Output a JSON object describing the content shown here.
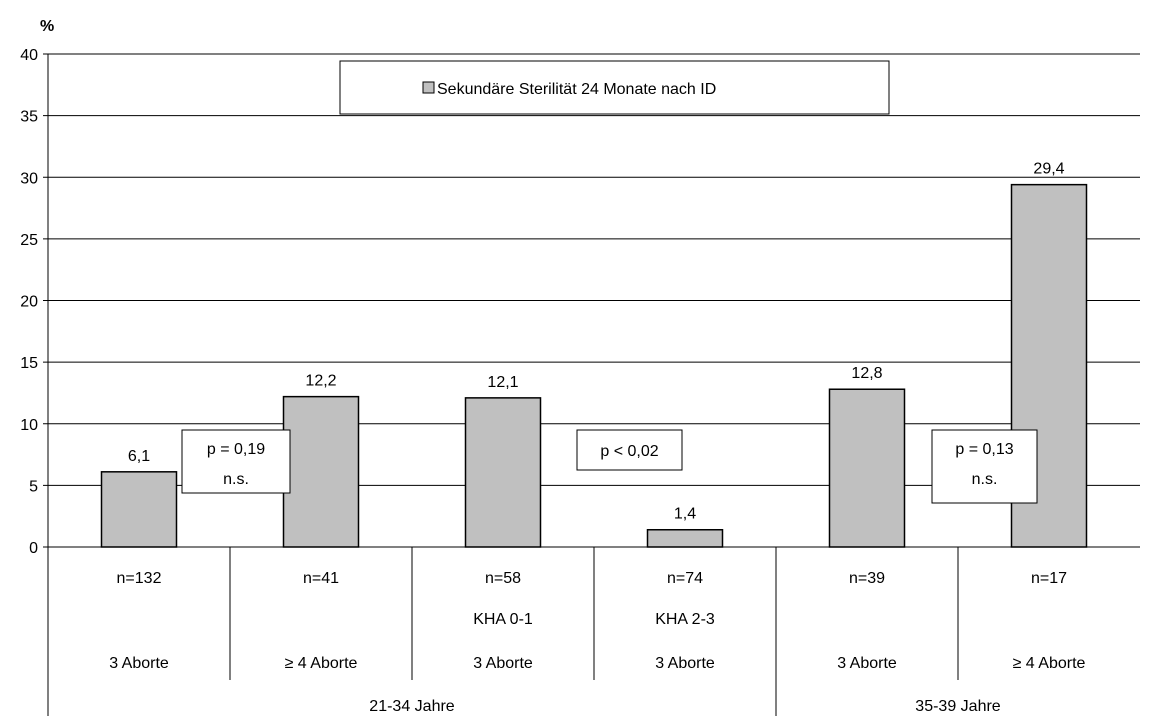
{
  "chart_data": {
    "type": "bar",
    "unit_label": "%",
    "ylim": [
      0,
      40
    ],
    "yticks": [
      "0",
      "5",
      "10",
      "15",
      "20",
      "25",
      "30",
      "35",
      "40"
    ],
    "grid": true,
    "legend": {
      "position": "top-center",
      "entries": [
        "Sekundäre Sterilität 24 Monate nach ID"
      ]
    },
    "bar_color": "#c0c0c0",
    "categories": [
      {
        "n": "n=132",
        "sub": "",
        "abort": "3 Aborte"
      },
      {
        "n": "n=41",
        "sub": "",
        "abort": "≥ 4 Aborte"
      },
      {
        "n": "n=58",
        "sub": "KHA 0-1",
        "abort": "3 Aborte"
      },
      {
        "n": "n=74",
        "sub": "KHA 2-3",
        "abort": "3 Aborte"
      },
      {
        "n": "n=39",
        "sub": "",
        "abort": "3 Aborte"
      },
      {
        "n": "n=17",
        "sub": "",
        "abort": "≥ 4 Aborte"
      }
    ],
    "values": [
      6.1,
      12.2,
      12.1,
      1.4,
      12.8,
      29.4
    ],
    "value_labels": [
      "6,1",
      "12,2",
      "12,1",
      "1,4",
      "12,8",
      "29,4"
    ],
    "age_groups": [
      {
        "label": "21-34 Jahre",
        "from": 0,
        "to": 3
      },
      {
        "label": "35-39 Jahre",
        "from": 4,
        "to": 5
      }
    ],
    "annotations": [
      {
        "lines": [
          "p = 0,19",
          "n.s."
        ],
        "between": [
          0,
          1
        ]
      },
      {
        "lines": [
          "p < 0,02"
        ],
        "between": [
          2,
          3
        ]
      },
      {
        "lines": [
          "p = 0,13",
          "n.s."
        ],
        "between": [
          4,
          5
        ]
      }
    ]
  }
}
